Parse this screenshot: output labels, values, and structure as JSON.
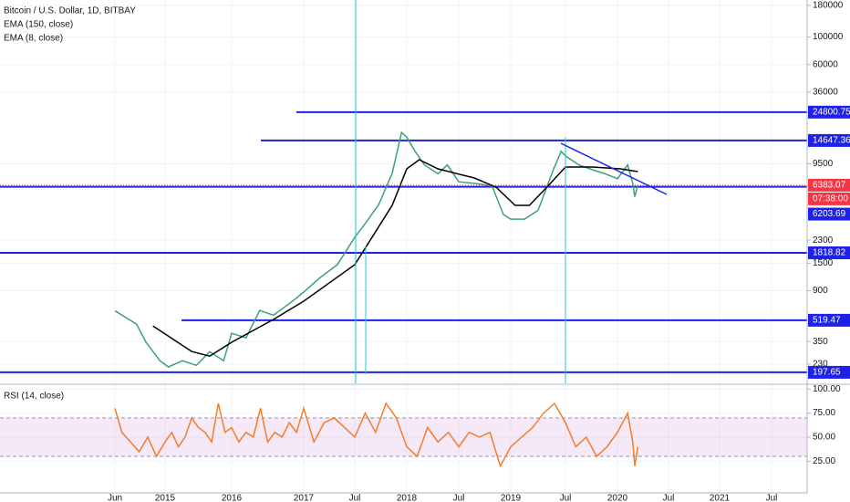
{
  "chart_data": [
    {
      "type": "line",
      "title": "Bitcoin / U.S. Dollar, 1D, BITBAY",
      "log_scale": true,
      "grid": true,
      "ylim": [
        161,
        199000
      ],
      "yticks": [
        180000,
        100000,
        60000,
        36000,
        9500,
        2300,
        1500,
        900,
        350,
        230
      ],
      "series": [
        {
          "name": "Bitcoin / U.S. Dollar, 1D, BITBAY",
          "color": "#3aa17e",
          "x": [
            2014.42,
            2014.67,
            2014.78,
            2014.94,
            2015.05,
            2015.26,
            2015.47,
            2015.67,
            2015.88,
            2016.0,
            2016.2,
            2016.39,
            2016.58,
            2016.84,
            2017.0,
            2017.15,
            2017.33,
            2017.5,
            2017.6,
            2017.73,
            2017.86,
            2017.95,
            2018.0,
            2018.08,
            2018.17,
            2018.3,
            2018.39,
            2018.5,
            2018.65,
            2018.82,
            2018.93,
            2019.0,
            2019.125,
            2019.25,
            2019.375,
            2019.46,
            2019.5,
            2019.63,
            2019.76,
            2019.88,
            2020.0,
            2020.1,
            2020.15,
            2020.17,
            2020.2
          ],
          "values": [
            620,
            484,
            345,
            245,
            218,
            245,
            225,
            290,
            245,
            408,
            375,
            624,
            570,
            738,
            877,
            1130,
            1460,
            2420,
            3125,
            4450,
            7940,
            17000,
            15600,
            12000,
            9300,
            7900,
            9300,
            6800,
            6600,
            6300,
            3700,
            3400,
            3400,
            4000,
            7900,
            12000,
            11000,
            9300,
            8500,
            7900,
            7200,
            9300,
            6600,
            5150,
            6383.07
          ]
        },
        {
          "name": "EMA (150, close)",
          "color": "#000000",
          "x": [
            2014.86,
            2015.4,
            2015.67,
            2016.0,
            2016.58,
            2017.0,
            2017.5,
            2017.86,
            2018.0,
            2018.12,
            2018.3,
            2018.65,
            2018.86,
            2019.04,
            2019.17,
            2019.33,
            2019.5,
            2019.76,
            2020.03,
            2020.2
          ],
          "values": [
            468,
            291,
            267,
            345,
            527,
            740,
            1458,
            4390,
            8650,
            10240,
            8650,
            7300,
            6150,
            4390,
            4390,
            6150,
            8940,
            8940,
            8650,
            8220
          ]
        }
      ],
      "extra_legend": [
        "EMA (8, close)"
      ],
      "levels": [
        24800.75,
        14647.36,
        6203.69,
        1818.82,
        519.47,
        197.65
      ],
      "level_color": "#1e22e6",
      "last_price": 6383.07,
      "last_price_color": "#f23645",
      "countdown": "07:38:00"
    },
    {
      "type": "line",
      "title": "RSI (14, close)",
      "grid": true,
      "ylim": [
        -6,
        104
      ],
      "yticks": [
        {
          "value": 100,
          "label": "100.00"
        },
        {
          "value": 75,
          "label": "75.00"
        },
        {
          "value": 50,
          "label": "50.00"
        },
        {
          "value": 25,
          "label": "25.00"
        }
      ],
      "band": [
        30,
        70
      ],
      "band_color": "#9c27b0",
      "xlim": [
        2013.09,
        2021.84
      ],
      "xticks": [
        {
          "value": 2014.42,
          "label": "Jun"
        },
        2015,
        2016,
        2017,
        {
          "value": 2017.5,
          "label": "Jul"
        },
        2018,
        {
          "value": 2018.5,
          "label": "Jul"
        },
        2019,
        {
          "value": 2019.5,
          "label": "Jul"
        },
        2020,
        {
          "value": 2020.5,
          "label": "Jul"
        },
        2021,
        {
          "value": 2021.5,
          "label": "Jul"
        }
      ],
      "series": [
        {
          "color": "#f57c2a",
          "x": [
            2014.42,
            2014.5,
            2014.6,
            2014.7,
            2014.8,
            2014.9,
            2015.0,
            2015.1,
            2015.2,
            2015.3,
            2015.4,
            2015.5,
            2015.6,
            2015.7,
            2015.8,
            2015.9,
            2016.0,
            2016.1,
            2016.2,
            2016.3,
            2016.4,
            2016.5,
            2016.6,
            2016.7,
            2016.8,
            2016.9,
            2017.0,
            2017.1,
            2017.2,
            2017.3,
            2017.4,
            2017.5,
            2017.6,
            2017.7,
            2017.8,
            2017.9,
            2018.0,
            2018.1,
            2018.2,
            2018.3,
            2018.4,
            2018.5,
            2018.6,
            2018.7,
            2018.8,
            2018.9,
            2019.0,
            2019.1,
            2019.2,
            2019.3,
            2019.4,
            2019.5,
            2019.6,
            2019.7,
            2019.8,
            2019.9,
            2020.0,
            2020.1,
            2020.15,
            2020.17,
            2020.2
          ],
          "values": [
            80,
            55,
            45,
            35,
            50,
            30,
            45,
            55,
            40,
            50,
            70,
            60,
            55,
            45,
            85,
            55,
            60,
            45,
            55,
            50,
            80,
            45,
            55,
            50,
            65,
            55,
            80,
            45,
            65,
            70,
            60,
            50,
            75,
            55,
            85,
            70,
            40,
            30,
            60,
            45,
            55,
            40,
            55,
            50,
            55,
            20,
            40,
            50,
            60,
            75,
            85,
            65,
            40,
            50,
            30,
            40,
            55,
            75,
            45,
            20,
            40
          ]
        }
      ]
    }
  ]
}
